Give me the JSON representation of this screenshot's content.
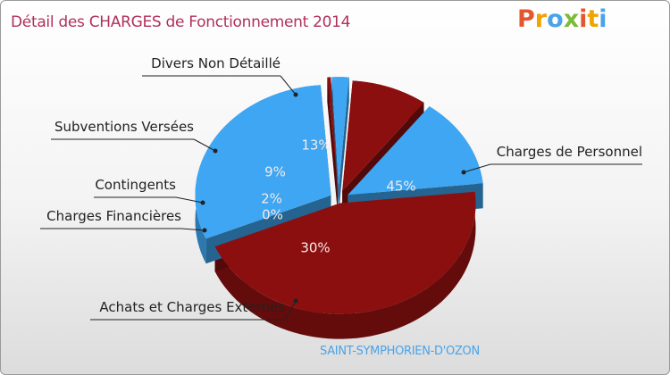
{
  "title": "Détail des CHARGES de Fonctionnement 2014",
  "logo": {
    "text": "Proxiti",
    "letters": [
      {
        "ch": "P",
        "color": "#e4572e"
      },
      {
        "ch": "r",
        "color": "#f2a300"
      },
      {
        "ch": "o",
        "color": "#4aa3e8"
      },
      {
        "ch": "x",
        "color": "#7cbb35"
      },
      {
        "ch": "i",
        "color": "#e4572e"
      },
      {
        "ch": "t",
        "color": "#f2a300"
      },
      {
        "ch": "i",
        "color": "#4aa3e8"
      }
    ]
  },
  "commune": "SAINT-SYMPHORIEN-D'OZON",
  "chart_data": {
    "type": "pie",
    "title": "Détail des CHARGES de Fonctionnement 2014",
    "unit": "%",
    "slices": [
      {
        "label": "Charges de Personnel",
        "value": 45,
        "pct_label": "45%",
        "color": "#8b0f0f"
      },
      {
        "label": "Achats et Charges Externes",
        "value": 30,
        "pct_label": "30%",
        "color": "#3ea6f2"
      },
      {
        "label": "Charges Financières",
        "value": 0.4,
        "pct_label": "0%",
        "color": "#8b0f0f"
      },
      {
        "label": "Contingents",
        "value": 2,
        "pct_label": "2%",
        "color": "#3ea6f2"
      },
      {
        "label": "Subventions Versées",
        "value": 9,
        "pct_label": "9%",
        "color": "#8b0f0f"
      },
      {
        "label": "Divers Non Détaillé",
        "value": 13,
        "pct_label": "13%",
        "color": "#3ea6f2"
      }
    ]
  }
}
